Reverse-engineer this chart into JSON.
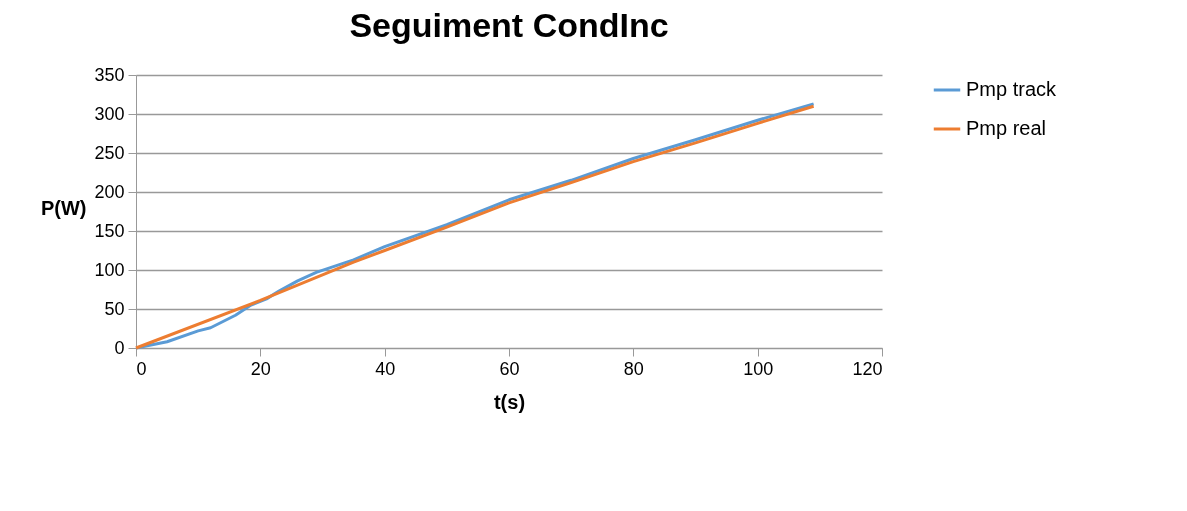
{
  "chart_data": {
    "type": "line",
    "title": "Seguiment CondInc",
    "xlabel": "t(s)",
    "ylabel": "P(W)",
    "xlim": [
      0,
      120
    ],
    "xticks": [
      0,
      20,
      40,
      60,
      80,
      100,
      120
    ],
    "ylim": [
      0,
      350
    ],
    "yticks": [
      0,
      50,
      100,
      150,
      200,
      250,
      300,
      350
    ],
    "grid": "y",
    "legend": "right",
    "marker": "none",
    "line_style": "solid",
    "series": [
      {
        "name": "Pmp track",
        "color": "#5b9bd5",
        "x": [
          0,
          5,
          10,
          12,
          16,
          18.5,
          21,
          23,
          26,
          29,
          35,
          40,
          50,
          60,
          70,
          80,
          90,
          100,
          109
        ],
        "values": [
          0,
          8,
          22,
          26,
          42,
          55,
          63,
          73,
          86,
          97,
          113,
          130,
          158,
          190,
          215,
          243,
          267,
          292,
          313
        ]
      },
      {
        "name": "Pmp real",
        "color": "#ed7d31",
        "x": [
          0,
          20,
          35,
          40,
          50,
          60,
          70,
          80,
          90,
          100,
          109
        ],
        "values": [
          0,
          61,
          110,
          125,
          155,
          186,
          212,
          239,
          263,
          288,
          310
        ]
      }
    ]
  }
}
